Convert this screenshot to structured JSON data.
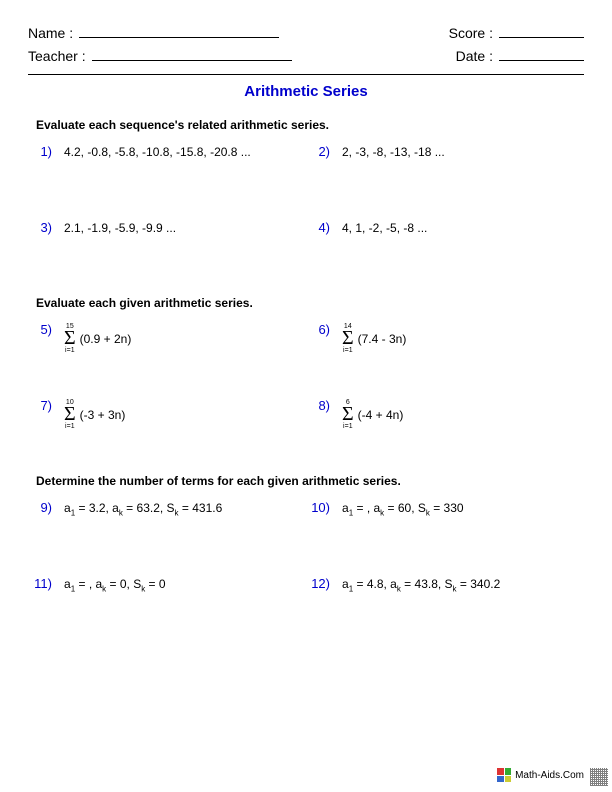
{
  "header": {
    "name_label": "Name :",
    "teacher_label": "Teacher :",
    "score_label": "Score :",
    "date_label": "Date :"
  },
  "title": "Arithmetic Series",
  "sections": [
    {
      "heading": "Evaluate each sequence's related arithmetic series.",
      "type": "text",
      "problems": [
        {
          "num": "1)",
          "text": "4.2, -0.8, -5.8, -10.8, -15.8, -20.8 ..."
        },
        {
          "num": "2)",
          "text": "2, -3, -8, -13, -18 ..."
        },
        {
          "num": "3)",
          "text": "2.1, -1.9, -5.9, -9.9 ..."
        },
        {
          "num": "4)",
          "text": "4, 1, -2, -5, -8 ..."
        }
      ]
    },
    {
      "heading": "Evaluate each given arithmetic series.",
      "type": "sigma",
      "problems": [
        {
          "num": "5)",
          "upper": "15",
          "lower": "i=1",
          "expr": "(0.9 + 2n)"
        },
        {
          "num": "6)",
          "upper": "14",
          "lower": "i=1",
          "expr": "(7.4 - 3n)"
        },
        {
          "num": "7)",
          "upper": "10",
          "lower": "i=1",
          "expr": "(-3 + 3n)"
        },
        {
          "num": "8)",
          "upper": "6",
          "lower": "i=1",
          "expr": "(-4 + 4n)"
        }
      ]
    },
    {
      "heading": "Determine the number of terms for each given arithmetic series.",
      "type": "terms",
      "problems": [
        {
          "num": "9)",
          "a1": "3.2",
          "an": "63.2",
          "sn": "431.6"
        },
        {
          "num": "10)",
          "a1": "",
          "an": "60",
          "sn": "330"
        },
        {
          "num": "11)",
          "a1": "",
          "an": "0",
          "sn": "0"
        },
        {
          "num": "12)",
          "a1": "4.8",
          "an": "43.8",
          "sn": "340.2"
        }
      ]
    }
  ],
  "footer": {
    "site": "Math-Aids.Com"
  },
  "colors": {
    "accent": "#0000cc",
    "text": "#000000",
    "bg": "#ffffff"
  }
}
